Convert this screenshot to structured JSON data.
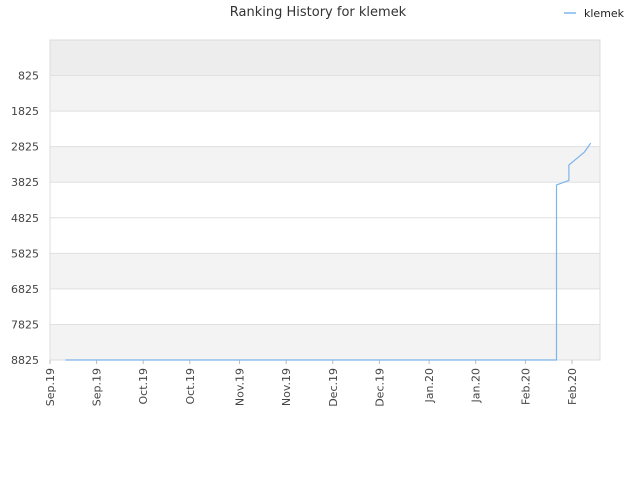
{
  "chart_data": {
    "type": "line",
    "title": "Ranking History for klemek",
    "xlabel": "",
    "ylabel": "",
    "y_inverted": true,
    "ylim": [
      8825,
      -175
    ],
    "y_ticks": [
      825,
      1825,
      2825,
      3825,
      4825,
      5825,
      6825,
      7825,
      8825
    ],
    "x_range": [
      "2019-09-01",
      "2020-02-25"
    ],
    "x_ticks": [
      {
        "label": "Sep.19",
        "date": "2019-09-01"
      },
      {
        "label": "Sep.19",
        "date": "2019-09-16"
      },
      {
        "label": "Oct.19",
        "date": "2019-10-01"
      },
      {
        "label": "Oct.19",
        "date": "2019-10-16"
      },
      {
        "label": "Nov.19",
        "date": "2019-11-01"
      },
      {
        "label": "Nov.19",
        "date": "2019-11-16"
      },
      {
        "label": "Dec.19",
        "date": "2019-12-01"
      },
      {
        "label": "Dec.19",
        "date": "2019-12-16"
      },
      {
        "label": "Jan.20",
        "date": "2020-01-01"
      },
      {
        "label": "Jan.20",
        "date": "2020-01-16"
      },
      {
        "label": "Feb.20",
        "date": "2020-02-01"
      },
      {
        "label": "Feb.20",
        "date": "2020-02-16"
      }
    ],
    "grid": true,
    "legend_position": "top-right",
    "series": [
      {
        "name": "klemek",
        "color": "#7cb5ec",
        "points": [
          {
            "x": "2019-09-06",
            "y": 8825
          },
          {
            "x": "2020-02-11",
            "y": 8825
          },
          {
            "x": "2020-02-11",
            "y": 3900
          },
          {
            "x": "2020-02-15",
            "y": 3775
          },
          {
            "x": "2020-02-15",
            "y": 3340
          },
          {
            "x": "2020-02-18",
            "y": 3125
          },
          {
            "x": "2020-02-20",
            "y": 2975
          },
          {
            "x": "2020-02-22",
            "y": 2725
          }
        ]
      }
    ]
  }
}
